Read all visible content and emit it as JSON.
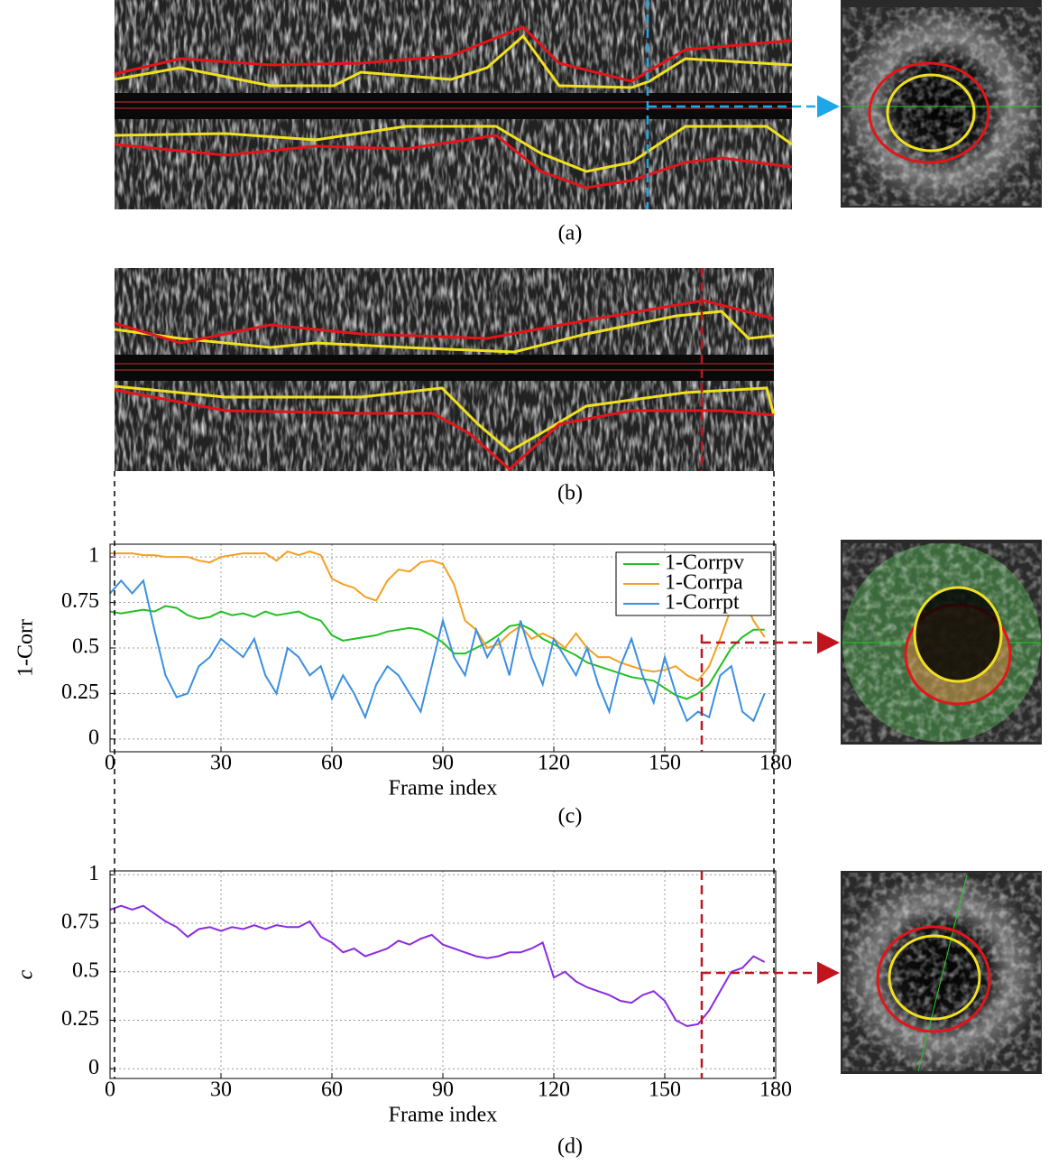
{
  "captions": [
    "(a)",
    "(b)",
    "(c)",
    "(d)"
  ],
  "chart_data": [
    {
      "type": "line",
      "xlabel": "Frame index",
      "ylabel": "1-Corr",
      "legend": "upper right",
      "grid": true,
      "xlim": [
        0,
        180
      ],
      "xticks": [
        0,
        30,
        60,
        90,
        120,
        150,
        180
      ],
      "ylim": [
        -0.07,
        1.07
      ],
      "yticks": [
        0,
        0.25,
        0.5,
        0.75,
        1
      ],
      "x": [
        0,
        3,
        6,
        9,
        12,
        15,
        18,
        21,
        24,
        27,
        30,
        33,
        36,
        39,
        42,
        45,
        48,
        51,
        54,
        57,
        60,
        63,
        66,
        69,
        72,
        75,
        78,
        81,
        84,
        87,
        90,
        93,
        96,
        99,
        102,
        105,
        108,
        111,
        114,
        117,
        120,
        123,
        126,
        129,
        132,
        135,
        138,
        141,
        144,
        147,
        150,
        153,
        156,
        159,
        162,
        165,
        168,
        171,
        174,
        177
      ],
      "series": [
        {
          "name": "1-Corrpv",
          "color": "#22c022",
          "values": [
            0.7,
            0.69,
            0.7,
            0.71,
            0.7,
            0.73,
            0.72,
            0.68,
            0.66,
            0.67,
            0.7,
            0.68,
            0.69,
            0.67,
            0.7,
            0.68,
            0.69,
            0.7,
            0.67,
            0.65,
            0.57,
            0.54,
            0.55,
            0.56,
            0.57,
            0.59,
            0.6,
            0.61,
            0.6,
            0.57,
            0.53,
            0.47,
            0.47,
            0.5,
            0.53,
            0.57,
            0.62,
            0.63,
            0.6,
            0.55,
            0.52,
            0.49,
            0.46,
            0.42,
            0.4,
            0.38,
            0.36,
            0.34,
            0.33,
            0.32,
            0.28,
            0.24,
            0.22,
            0.25,
            0.3,
            0.4,
            0.5,
            0.56,
            0.6,
            0.6
          ]
        },
        {
          "name": "1-Corrpa",
          "color": "#f5a020",
          "values": [
            1.02,
            1.02,
            1.02,
            1.01,
            1.01,
            1.0,
            1.0,
            1.0,
            0.98,
            0.97,
            1.0,
            1.01,
            1.02,
            1.02,
            1.02,
            0.98,
            1.03,
            1.01,
            1.03,
            1.01,
            0.88,
            0.85,
            0.83,
            0.78,
            0.76,
            0.87,
            0.93,
            0.92,
            0.97,
            0.98,
            0.96,
            0.85,
            0.65,
            0.6,
            0.5,
            0.52,
            0.58,
            0.62,
            0.55,
            0.58,
            0.55,
            0.5,
            0.58,
            0.5,
            0.45,
            0.45,
            0.42,
            0.4,
            0.38,
            0.37,
            0.38,
            0.4,
            0.35,
            0.32,
            0.4,
            0.55,
            0.72,
            0.78,
            0.65,
            0.56
          ]
        },
        {
          "name": "1-Corrpt",
          "color": "#3a8fe0",
          "values": [
            0.8,
            0.87,
            0.8,
            0.87,
            0.6,
            0.35,
            0.23,
            0.25,
            0.4,
            0.45,
            0.55,
            0.5,
            0.45,
            0.55,
            0.35,
            0.25,
            0.5,
            0.45,
            0.35,
            0.4,
            0.22,
            0.35,
            0.25,
            0.12,
            0.3,
            0.4,
            0.35,
            0.25,
            0.15,
            0.4,
            0.65,
            0.45,
            0.35,
            0.6,
            0.45,
            0.55,
            0.35,
            0.65,
            0.45,
            0.3,
            0.55,
            0.45,
            0.35,
            0.5,
            0.3,
            0.15,
            0.4,
            0.55,
            0.35,
            0.2,
            0.45,
            0.25,
            0.1,
            0.15,
            0.12,
            0.35,
            0.4,
            0.15,
            0.1,
            0.25
          ]
        }
      ]
    },
    {
      "type": "line",
      "xlabel": "Frame index",
      "ylabel": "c",
      "grid": true,
      "xlim": [
        0,
        180
      ],
      "xticks": [
        0,
        30,
        60,
        90,
        120,
        150,
        180
      ],
      "ylim": [
        -0.05,
        1.02
      ],
      "yticks": [
        0,
        0.25,
        0.5,
        0.75,
        1
      ],
      "x": [
        0,
        3,
        6,
        9,
        12,
        15,
        18,
        21,
        24,
        27,
        30,
        33,
        36,
        39,
        42,
        45,
        48,
        51,
        54,
        57,
        60,
        63,
        66,
        69,
        72,
        75,
        78,
        81,
        84,
        87,
        90,
        93,
        96,
        99,
        102,
        105,
        108,
        111,
        114,
        117,
        120,
        123,
        126,
        129,
        132,
        135,
        138,
        141,
        144,
        147,
        150,
        153,
        156,
        159,
        162,
        165,
        168,
        171,
        174,
        177
      ],
      "series": [
        {
          "color": "#8a2be2",
          "values": [
            0.82,
            0.84,
            0.82,
            0.84,
            0.8,
            0.76,
            0.73,
            0.68,
            0.72,
            0.73,
            0.71,
            0.73,
            0.72,
            0.74,
            0.72,
            0.74,
            0.73,
            0.73,
            0.76,
            0.68,
            0.65,
            0.6,
            0.62,
            0.58,
            0.6,
            0.62,
            0.66,
            0.64,
            0.67,
            0.69,
            0.64,
            0.62,
            0.6,
            0.58,
            0.57,
            0.58,
            0.6,
            0.6,
            0.62,
            0.65,
            0.47,
            0.5,
            0.45,
            0.42,
            0.4,
            0.38,
            0.35,
            0.34,
            0.38,
            0.4,
            0.35,
            0.25,
            0.22,
            0.23,
            0.3,
            0.4,
            0.5,
            0.52,
            0.58,
            0.55
          ]
        }
      ]
    }
  ]
}
